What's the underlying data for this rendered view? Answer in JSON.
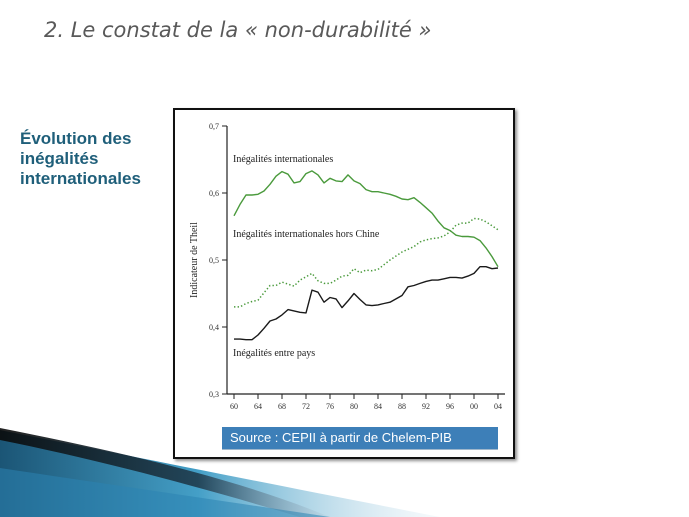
{
  "slide": {
    "title": "2. Le constat de la « non-durabilité »",
    "side_heading": [
      "Évolution des",
      "inégalités",
      "internationales"
    ]
  },
  "source": "Source : CEPII à partir de Chelem-PIB",
  "colors": {
    "green": "#4a9a3c",
    "dark": "#1a1a1a",
    "title": "#595959",
    "heading": "#1f5f7a",
    "source_bg": "#3d7fb8"
  },
  "chart_data": {
    "type": "line",
    "ylabel": "Indicateur de Theil",
    "ylim": [
      0.3,
      0.7
    ],
    "yticks": [
      "0,3",
      "0,4",
      "0,5",
      "0,6",
      "0,7"
    ],
    "xlim": [
      1960,
      2004
    ],
    "xticks": [
      "60",
      "64",
      "68",
      "72",
      "76",
      "80",
      "84",
      "88",
      "92",
      "96",
      "00",
      "04"
    ],
    "grid": false,
    "series": [
      {
        "name": "Inégalités internationales",
        "style": "solid",
        "color": "#4a9a3c",
        "x": [
          1960,
          1961,
          1962,
          1963,
          1964,
          1965,
          1966,
          1967,
          1968,
          1969,
          1970,
          1971,
          1972,
          1973,
          1974,
          1975,
          1976,
          1977,
          1978,
          1979,
          1980,
          1981,
          1982,
          1983,
          1984,
          1985,
          1986,
          1987,
          1988,
          1989,
          1990,
          1991,
          1992,
          1993,
          1994,
          1995,
          1996,
          1997,
          1998,
          1999,
          2000,
          2001,
          2002,
          2003,
          2004
        ],
        "values": [
          0.566,
          0.583,
          0.597,
          0.597,
          0.598,
          0.603,
          0.613,
          0.625,
          0.632,
          0.628,
          0.615,
          0.617,
          0.629,
          0.633,
          0.627,
          0.615,
          0.622,
          0.618,
          0.617,
          0.627,
          0.618,
          0.614,
          0.605,
          0.602,
          0.602,
          0.6,
          0.598,
          0.595,
          0.591,
          0.59,
          0.593,
          0.586,
          0.578,
          0.57,
          0.558,
          0.548,
          0.544,
          0.537,
          0.535,
          0.535,
          0.534,
          0.529,
          0.518,
          0.505,
          0.49
        ]
      },
      {
        "name": "Inégalités internationales hors Chine",
        "style": "dotted",
        "color": "#4a9a3c",
        "x": [
          1960,
          1961,
          1962,
          1963,
          1964,
          1965,
          1966,
          1967,
          1968,
          1969,
          1970,
          1971,
          1972,
          1973,
          1974,
          1975,
          1976,
          1977,
          1978,
          1979,
          1980,
          1981,
          1982,
          1983,
          1984,
          1985,
          1986,
          1987,
          1988,
          1989,
          1990,
          1991,
          1992,
          1993,
          1994,
          1995,
          1996,
          1997,
          1998,
          1999,
          2000,
          2001,
          2002,
          2003,
          2004
        ],
        "values": [
          0.43,
          0.43,
          0.435,
          0.438,
          0.44,
          0.451,
          0.462,
          0.462,
          0.467,
          0.464,
          0.461,
          0.47,
          0.475,
          0.48,
          0.469,
          0.465,
          0.465,
          0.47,
          0.476,
          0.477,
          0.487,
          0.481,
          0.485,
          0.484,
          0.486,
          0.493,
          0.5,
          0.506,
          0.512,
          0.516,
          0.52,
          0.527,
          0.53,
          0.532,
          0.533,
          0.536,
          0.542,
          0.552,
          0.555,
          0.555,
          0.562,
          0.561,
          0.557,
          0.551,
          0.545
        ]
      },
      {
        "name": "Inégalités entre pays",
        "style": "solid",
        "color": "#1a1a1a",
        "x": [
          1960,
          1961,
          1962,
          1963,
          1964,
          1965,
          1966,
          1967,
          1968,
          1969,
          1970,
          1971,
          1972,
          1973,
          1974,
          1975,
          1976,
          1977,
          1978,
          1979,
          1980,
          1981,
          1982,
          1983,
          1984,
          1985,
          1986,
          1987,
          1988,
          1989,
          1990,
          1991,
          1992,
          1993,
          1994,
          1995,
          1996,
          1997,
          1998,
          1999,
          2000,
          2001,
          2002,
          2003,
          2004
        ],
        "values": [
          0.382,
          0.382,
          0.381,
          0.381,
          0.388,
          0.398,
          0.409,
          0.412,
          0.418,
          0.426,
          0.424,
          0.422,
          0.421,
          0.455,
          0.452,
          0.437,
          0.444,
          0.442,
          0.429,
          0.439,
          0.45,
          0.441,
          0.433,
          0.432,
          0.433,
          0.435,
          0.437,
          0.442,
          0.447,
          0.46,
          0.462,
          0.465,
          0.468,
          0.47,
          0.47,
          0.472,
          0.474,
          0.474,
          0.473,
          0.476,
          0.48,
          0.49,
          0.49,
          0.487,
          0.488
        ]
      }
    ]
  }
}
